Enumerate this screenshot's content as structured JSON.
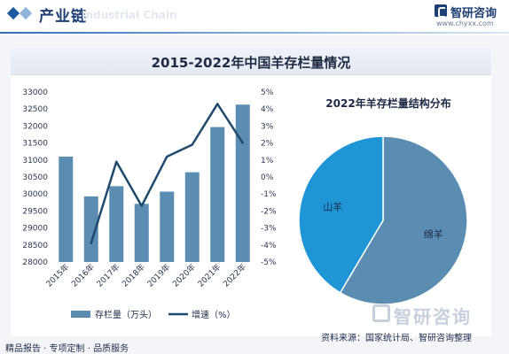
{
  "header": {
    "title": "产业链",
    "watermark": "Industrial Chain",
    "brand": "智研咨询",
    "url": "www.chyxx.com"
  },
  "footer": {
    "left": "精品报告 · 专项定制 · 品质服务",
    "source": "资料来源：国家统计局、智研咨询整理",
    "watermark_brand": "智研咨询"
  },
  "colors": {
    "bar": "#5b8db3",
    "line": "#1f4a6e",
    "pie_cotton": "#5b8db3",
    "pie_goat": "#1f95d6",
    "header_accent": "#1e3f73"
  },
  "chart_data": [
    {
      "type": "bar",
      "title": "2015-2022年中国羊存栏量情况",
      "categories": [
        "2015年",
        "2016年",
        "2017年",
        "2018年",
        "2019年",
        "2020年",
        "2021年",
        "2022年"
      ],
      "series": [
        {
          "name": "存栏量（万头）",
          "type": "bar",
          "axis": "left",
          "values": [
            31100,
            29930,
            30230,
            29710,
            30070,
            30640,
            31970,
            32630
          ]
        },
        {
          "name": "增速（%）",
          "type": "line",
          "axis": "right",
          "values": [
            null,
            -3.9,
            0.9,
            -1.7,
            1.2,
            1.9,
            4.3,
            2.0
          ]
        }
      ],
      "ylim_left": [
        28000,
        33000
      ],
      "yticks_left": [
        28000,
        28500,
        29000,
        29500,
        30000,
        30500,
        31000,
        31500,
        32000,
        32500,
        33000
      ],
      "ylim_right": [
        -5,
        5
      ],
      "yticks_right_labels": [
        "-5%",
        "-4%",
        "-3%",
        "-2%",
        "-1%",
        "0%",
        "1%",
        "2%",
        "3%",
        "4%",
        "5%"
      ],
      "legend": [
        "存栏量（万头）",
        "增速（%）"
      ],
      "legend_position": "bottom",
      "grid": false
    },
    {
      "type": "pie",
      "title": "2022年羊存栏量结构分布",
      "labels": [
        "绵羊",
        "山羊"
      ],
      "values": [
        58.5,
        41.5
      ],
      "legend": "none"
    }
  ]
}
